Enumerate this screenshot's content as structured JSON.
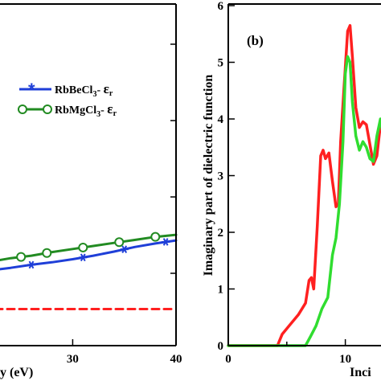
{
  "chart_data": [
    {
      "type": "line",
      "panel": "a",
      "xlabel": "y (eV)",
      "ylabel": "",
      "xlim": [
        12,
        40
      ],
      "ylim": [
        -0.72,
        6
      ],
      "x_ticks": [
        30,
        40
      ],
      "x_tick_labels": [
        "30",
        "40"
      ],
      "legend_position": "upper-right",
      "colors": {
        "RbBeCl3": "#1f3fd8",
        "RbMgCl3": "#228b22",
        "reference": "#ff2020"
      },
      "series": [
        {
          "name": "RbBeCl3",
          "legend_label": "RbBeCl",
          "legend_subscript": "3",
          "legend_suffix": "- ",
          "legend_symbol": "ε",
          "legend_symbol_sub": "r",
          "marker": "asterisk",
          "line_style": "solid",
          "color": "#1f3fd8",
          "x": [
            12,
            14,
            15,
            16,
            17,
            18,
            19,
            20,
            21,
            22,
            24,
            26,
            28,
            30,
            32,
            34,
            36,
            38,
            40
          ],
          "y": [
            0.38,
            0.4,
            0.45,
            0.4,
            0.55,
            0.5,
            0.58,
            0.66,
            0.72,
            0.76,
            0.81,
            0.87,
            0.92,
            0.98,
            1.05,
            1.13,
            1.22,
            1.29,
            1.35
          ],
          "marker_x": [
            14,
            20,
            26,
            31,
            35,
            39
          ]
        },
        {
          "name": "RbMgCl3",
          "legend_label": "RbMgCl",
          "legend_subscript": "3",
          "legend_suffix": "- ",
          "legend_symbol": "ε",
          "legend_symbol_sub": "r",
          "marker": "open-circle",
          "line_style": "solid",
          "color": "#228b22",
          "x": [
            12,
            14,
            15,
            16,
            16.5,
            17,
            17.5,
            18,
            19,
            20,
            21,
            22,
            24,
            26,
            28,
            30,
            32,
            34,
            36,
            38,
            40
          ],
          "y": [
            0.33,
            0.42,
            0.5,
            0.47,
            0.62,
            0.58,
            0.78,
            0.68,
            0.84,
            0.88,
            0.9,
            0.93,
            1.0,
            1.05,
            1.12,
            1.18,
            1.24,
            1.3,
            1.36,
            1.42,
            1.46
          ],
          "marker_x": [
            12.5,
            17.5,
            21,
            25,
            27.5,
            31,
            34.5,
            38
          ]
        },
        {
          "name": "",
          "marker": "none",
          "line_style": "dashed",
          "color": "#ff2020",
          "x": [
            12,
            40
          ],
          "y": [
            0.0,
            0.0
          ]
        }
      ]
    },
    {
      "type": "line",
      "panel": "b",
      "panel_label": "(b)",
      "xlabel": "Inci",
      "ylabel": "Imaginary part of dielectric function",
      "xlim": [
        0,
        16
      ],
      "ylim": [
        0,
        6
      ],
      "x_ticks": [
        0,
        10
      ],
      "x_tick_labels": [
        "0",
        "10"
      ],
      "y_ticks": [
        0,
        1,
        2,
        3,
        4,
        5,
        6
      ],
      "y_tick_labels": [
        "0",
        "1",
        "2",
        "3",
        "4",
        "5",
        "6"
      ],
      "series": [
        {
          "name": "",
          "color": "#ff2020",
          "x": [
            0,
            4.2,
            4.6,
            5.2,
            6.0,
            6.6,
            6.9,
            7.1,
            7.3,
            7.6,
            7.9,
            8.1,
            8.3,
            8.6,
            8.9,
            9.2,
            9.4,
            9.6,
            9.9,
            10.2,
            10.4,
            10.6,
            10.9,
            11.2,
            11.5,
            11.8,
            12.1,
            12.4,
            12.7,
            13.0,
            13.3,
            13.6,
            14.0,
            14.3
          ],
          "y": [
            0,
            0,
            0.2,
            0.35,
            0.55,
            0.75,
            1.15,
            1.2,
            1.0,
            2.1,
            3.35,
            3.45,
            3.3,
            3.4,
            2.9,
            2.45,
            2.5,
            3.6,
            4.6,
            5.55,
            5.65,
            5.1,
            4.2,
            3.85,
            3.95,
            3.9,
            3.55,
            3.2,
            3.35,
            3.9,
            3.7,
            3.2,
            2.5,
            2.3
          ]
        },
        {
          "name": "",
          "color": "#30dd30",
          "x": [
            0,
            6.6,
            7.0,
            7.5,
            8.0,
            8.5,
            8.9,
            9.2,
            9.5,
            9.8,
            10.0,
            10.2,
            10.4,
            10.6,
            10.9,
            11.2,
            11.5,
            11.8,
            12.1,
            12.4,
            12.7,
            13.0,
            13.3,
            13.6,
            14.0,
            14.3
          ],
          "y": [
            0,
            0,
            0.15,
            0.35,
            0.65,
            0.85,
            1.6,
            1.9,
            2.5,
            3.6,
            4.8,
            5.1,
            5.0,
            4.3,
            3.7,
            3.45,
            3.6,
            3.5,
            3.3,
            3.25,
            3.7,
            4.0,
            3.6,
            3.1,
            2.6,
            2.2
          ]
        }
      ]
    }
  ]
}
